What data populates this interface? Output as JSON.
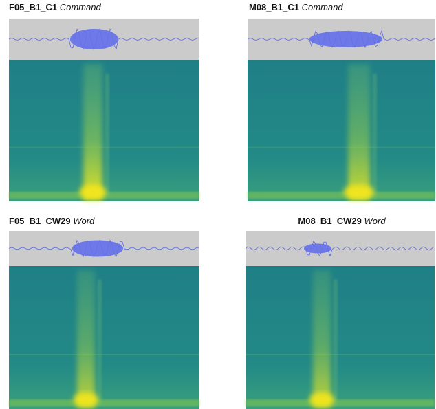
{
  "panels": [
    {
      "id": "F05_B1_C1",
      "kind": "Command"
    },
    {
      "id": "M08_B1_C1",
      "kind": "Command"
    },
    {
      "id": "F05_B1_CW29",
      "kind": "Word"
    },
    {
      "id": "M08_B1_CW29",
      "kind": "Word"
    }
  ]
}
